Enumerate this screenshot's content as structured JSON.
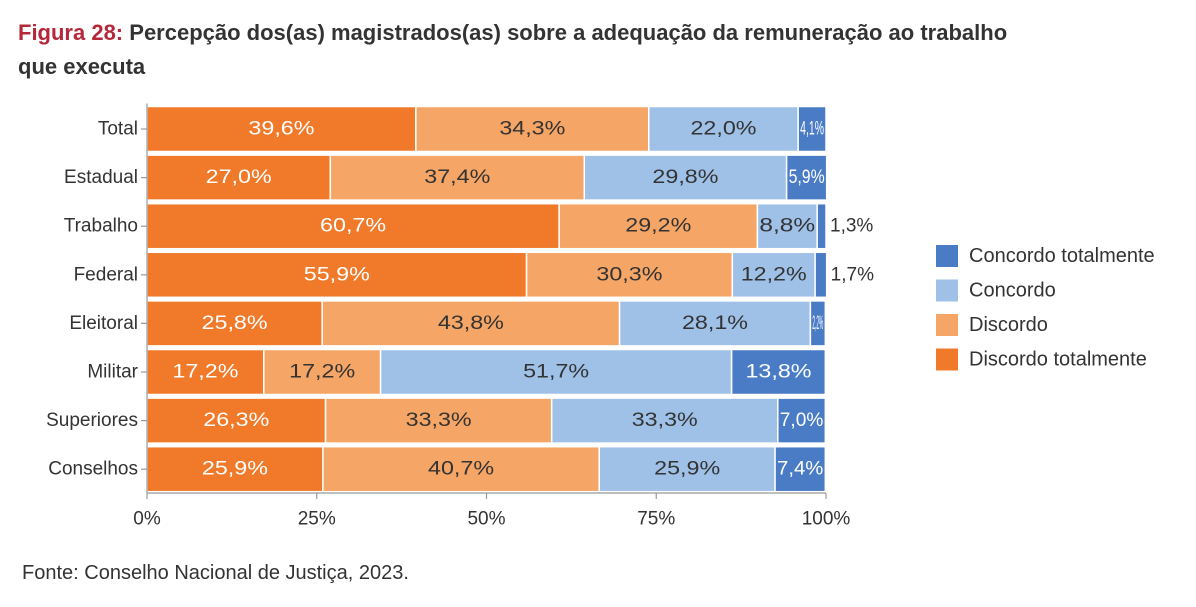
{
  "header": {
    "figure_label": "Figura 28:",
    "title_line1": "Percepção dos(as) magistrados(as) sobre a adequação da remuneração ao trabalho",
    "title_line2": "que executa"
  },
  "footer": {
    "source": "Fonte: Conselho Nacional de Justiça, 2023."
  },
  "colors": {
    "discordo_totalmente": "#f07a2a",
    "discordo": "#f5a565",
    "concordo": "#9fc1e8",
    "concordo_totalmente": "#4a7cc6"
  },
  "chart_data": {
    "type": "bar",
    "orientation": "horizontal",
    "stacked": true,
    "categories": [
      "Total",
      "Estadual",
      "Trabalho",
      "Federal",
      "Eleitoral",
      "Militar",
      "Superiores",
      "Conselhos"
    ],
    "series": [
      {
        "name": "Discordo totalmente",
        "color": "#f07a2a",
        "values": [
          39.6,
          27.0,
          60.7,
          55.9,
          25.8,
          17.2,
          26.3,
          25.9
        ],
        "labels": [
          "39,6%",
          "27,0%",
          "60,7%",
          "55,9%",
          "25,8%",
          "17,2%",
          "26,3%",
          "25,9%"
        ]
      },
      {
        "name": "Discordo",
        "color": "#f5a565",
        "values": [
          34.3,
          37.4,
          29.2,
          30.3,
          43.8,
          17.2,
          33.3,
          40.7
        ],
        "labels": [
          "34,3%",
          "37,4%",
          "29,2%",
          "30,3%",
          "43,8%",
          "17,2%",
          "33,3%",
          "40,7%"
        ]
      },
      {
        "name": "Concordo",
        "color": "#9fc1e8",
        "values": [
          22.0,
          29.8,
          8.8,
          12.2,
          28.1,
          51.7,
          33.3,
          25.9
        ],
        "labels": [
          "22,0%",
          "29,8%",
          "8,8%",
          "12,2%",
          "28,1%",
          "51,7%",
          "33,3%",
          "25,9%"
        ]
      },
      {
        "name": "Concordo totalmente",
        "color": "#4a7cc6",
        "values": [
          4.1,
          5.9,
          1.3,
          1.7,
          2.2,
          13.8,
          7.0,
          7.4
        ],
        "labels": [
          "4,1%",
          "5,9%",
          "1,3%",
          "1,7%",
          "2,2%",
          "13,8%",
          "7,0%",
          "7,4%"
        ]
      }
    ],
    "legend_order": [
      "Concordo totalmente",
      "Concordo",
      "Discordo",
      "Discordo totalmente"
    ],
    "x_ticks": [
      "0%",
      "25%",
      "50%",
      "75%",
      "100%"
    ],
    "xlim": [
      0,
      100
    ],
    "xlabel": "",
    "ylabel": "",
    "legend_position": "right"
  }
}
